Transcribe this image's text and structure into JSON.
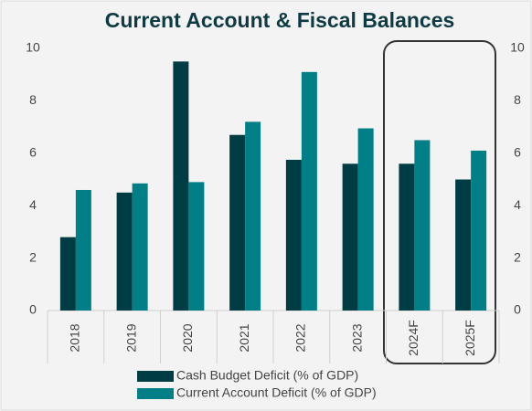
{
  "chart_data": {
    "type": "bar",
    "title": "Current Account & Fiscal Balances",
    "categories": [
      "2018",
      "2019",
      "2020",
      "2021",
      "2022",
      "2023",
      "2024F",
      "2025F"
    ],
    "series": [
      {
        "name": "Cash Budget Deficit (% of GDP)",
        "color": "#003c43",
        "values": [
          2.8,
          4.5,
          9.5,
          6.7,
          5.75,
          5.6,
          5.6,
          5.0
        ]
      },
      {
        "name": "Current Account Deficit (% of GDP)",
        "color": "#007f86",
        "values": [
          4.6,
          4.85,
          4.9,
          7.2,
          9.1,
          6.95,
          6.5,
          6.1
        ]
      }
    ],
    "ylim": [
      0,
      10
    ],
    "yticks": [
      0,
      2,
      4,
      6,
      8,
      10
    ],
    "y2lim": [
      0,
      10
    ],
    "y2ticks": [
      0,
      2,
      4,
      6,
      8,
      10
    ],
    "grid": false
  }
}
